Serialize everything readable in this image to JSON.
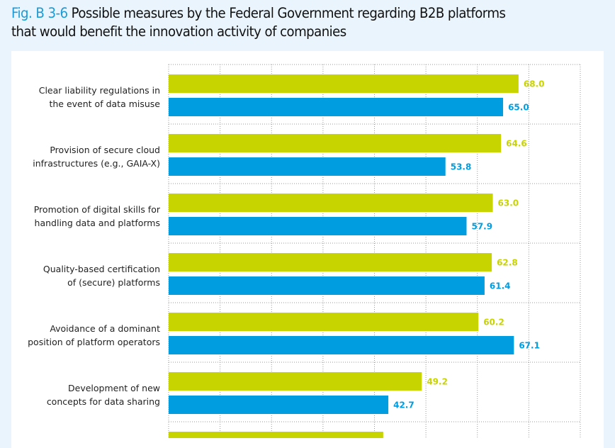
{
  "title": {
    "fig_label": "Fig. B 3-6",
    "line1": "Possible measures by the Federal Government regarding B2B platforms",
    "line2": "that would benefit the innovation activity of companies"
  },
  "colors": {
    "series1": "#c8d400",
    "series2": "#009de0",
    "background": "#e9f4fc",
    "grid": "#999999"
  },
  "chart_data": {
    "type": "bar",
    "orientation": "horizontal",
    "title": "Possible measures by the Federal Government regarding B2B platforms that would benefit the innovation activity of companies",
    "xlabel": "",
    "ylabel": "",
    "xlim": [
      0,
      80
    ],
    "grid": true,
    "categories": [
      [
        "Clear liability regulations in",
        "the event of data misuse"
      ],
      [
        "Provision of secure cloud",
        "infrastructures (e.g., GAIA-X)"
      ],
      [
        "Promotion of digital skills for",
        "handling data and platforms"
      ],
      [
        "Quality-based certification",
        "of (secure) platforms"
      ],
      [
        "Avoidance of a dominant",
        "position of platform operators"
      ],
      [
        "Development of new",
        "concepts for data sharing"
      ],
      [
        "",
        ""
      ]
    ],
    "series": [
      {
        "name": "series1",
        "color": "#c8d400",
        "values": [
          68.0,
          64.6,
          63.0,
          62.8,
          60.2,
          49.2,
          41.7
        ],
        "labels": [
          "68.0",
          "64.6",
          "63.0",
          "62.8",
          "60.2",
          "49.2",
          ""
        ]
      },
      {
        "name": "series2",
        "color": "#009de0",
        "values": [
          65.0,
          53.8,
          57.9,
          61.4,
          67.1,
          42.7,
          null
        ],
        "labels": [
          "65.0",
          "53.8",
          "57.9",
          "61.4",
          "67.1",
          "42.7",
          ""
        ]
      }
    ]
  }
}
